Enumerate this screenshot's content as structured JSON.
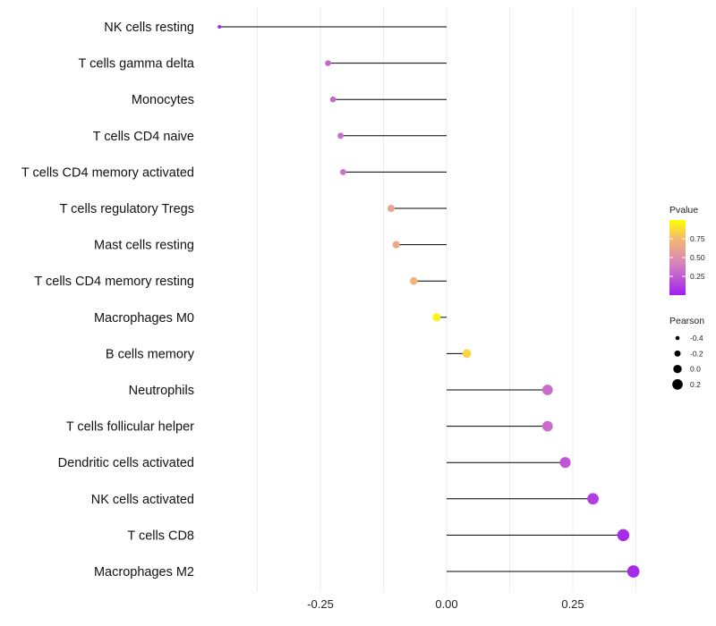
{
  "chart_data": {
    "type": "lollipop",
    "title": "",
    "xlabel": "",
    "ylabel": "",
    "xlim": [
      -0.5,
      0.4
    ],
    "x_ticks": [
      -0.25,
      0.0,
      0.25
    ],
    "x_tick_labels": [
      "-0.25",
      "0.00",
      "0.25"
    ],
    "grid": true,
    "categories": [
      "NK cells resting",
      "T cells gamma delta",
      "Monocytes",
      "T cells CD4 naive",
      "T cells CD4 memory activated",
      "T cells regulatory  Tregs",
      "Mast cells resting",
      "T cells CD4 memory resting",
      "Macrophages M0",
      "B cells memory",
      "Neutrophils",
      "T cells follicular helper",
      "Dendritic cells activated",
      "NK cells activated",
      "T cells CD8",
      "Macrophages M2"
    ],
    "pearson": [
      -0.45,
      -0.235,
      -0.225,
      -0.21,
      -0.205,
      -0.11,
      -0.1,
      -0.065,
      -0.02,
      0.04,
      0.2,
      0.2,
      0.235,
      0.29,
      0.35,
      0.37
    ],
    "pvalue": [
      0.02,
      0.3,
      0.3,
      0.32,
      0.35,
      0.62,
      0.65,
      0.72,
      0.95,
      0.85,
      0.32,
      0.32,
      0.22,
      0.12,
      0.05,
      0.04
    ],
    "legend": {
      "position": "right",
      "color_title": "Pvalue",
      "color_ticks": [
        0.75,
        0.5,
        0.25
      ],
      "color_tick_labels": [
        "0.75",
        "0.50",
        "0.25"
      ],
      "color_low": "#a020f0",
      "color_mid": "#d580c0",
      "color_high": "#ffff00",
      "size_title": "Pearson",
      "size_ticks": [
        -0.4,
        -0.2,
        0.0,
        0.2
      ],
      "size_tick_labels": [
        "-0.4",
        "-0.2",
        "0.0",
        "0.2"
      ]
    }
  }
}
